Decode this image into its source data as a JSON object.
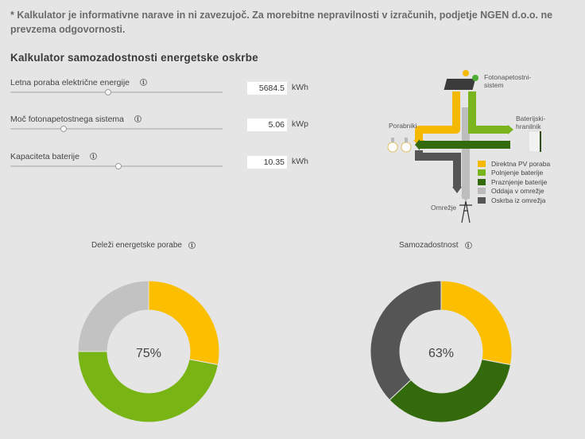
{
  "disclaimer": "* Kalkulator je informativne narave in ni zavezujoč. Za morebitne nepravilnosti v izračunih, podjetje NGEN d.o.o. ne prevzema odgovornosti.",
  "title": "Kalkulator samozadostnosti energetske oskrbe",
  "inputs": [
    {
      "label": "Letna poraba električne energije",
      "value": "5684.5",
      "unit": "kWh",
      "slider_fraction": 0.46
    },
    {
      "label": "Moč fotonapetostnega sistema",
      "value": "5.06",
      "unit": "kWp",
      "slider_fraction": 0.25
    },
    {
      "label": "Kapaciteta baterije",
      "value": "10.35",
      "unit": "kWh",
      "slider_fraction": 0.51
    }
  ],
  "info_glyph": "i",
  "diagram": {
    "pv_label": "Fotonapetostni-\nsistem",
    "battery_label": "Baterijski-\nhranilnik",
    "consumers_label": "Porabniki",
    "grid_label": "Omrežje",
    "legend": [
      {
        "label": "Direktna PV poraba",
        "color": "#f5b800"
      },
      {
        "label": "Polnjenje baterije",
        "color": "#7ab51d"
      },
      {
        "label": "Praznjenje baterije",
        "color": "#336a0b"
      },
      {
        "label": "Oddaja v omrežje",
        "color": "#bbbbbb"
      },
      {
        "label": "Oskrba iz omrežja",
        "color": "#555555"
      }
    ]
  },
  "charts": {
    "left": {
      "title": "Deleži energetske porabe",
      "center_label": "75%"
    },
    "right": {
      "title": "Samozadostnost",
      "center_label": "63%"
    }
  },
  "chart_data": [
    {
      "type": "pie",
      "title": "Deleži energetske porabe",
      "categories": [
        "Direktna PV poraba",
        "Polnjenje baterije",
        "Oddaja v omrežje"
      ],
      "values": [
        28,
        47,
        25
      ],
      "colors": [
        "#fbbf00",
        "#78b514",
        "#c2c2c2"
      ]
    },
    {
      "type": "pie",
      "title": "Samozadostnost",
      "categories": [
        "Direktna PV poraba",
        "Praznjenje baterije",
        "Oskrba iz omrežja"
      ],
      "values": [
        28,
        35,
        37
      ],
      "colors": [
        "#fbbf00",
        "#336a0b",
        "#555555"
      ]
    }
  ]
}
